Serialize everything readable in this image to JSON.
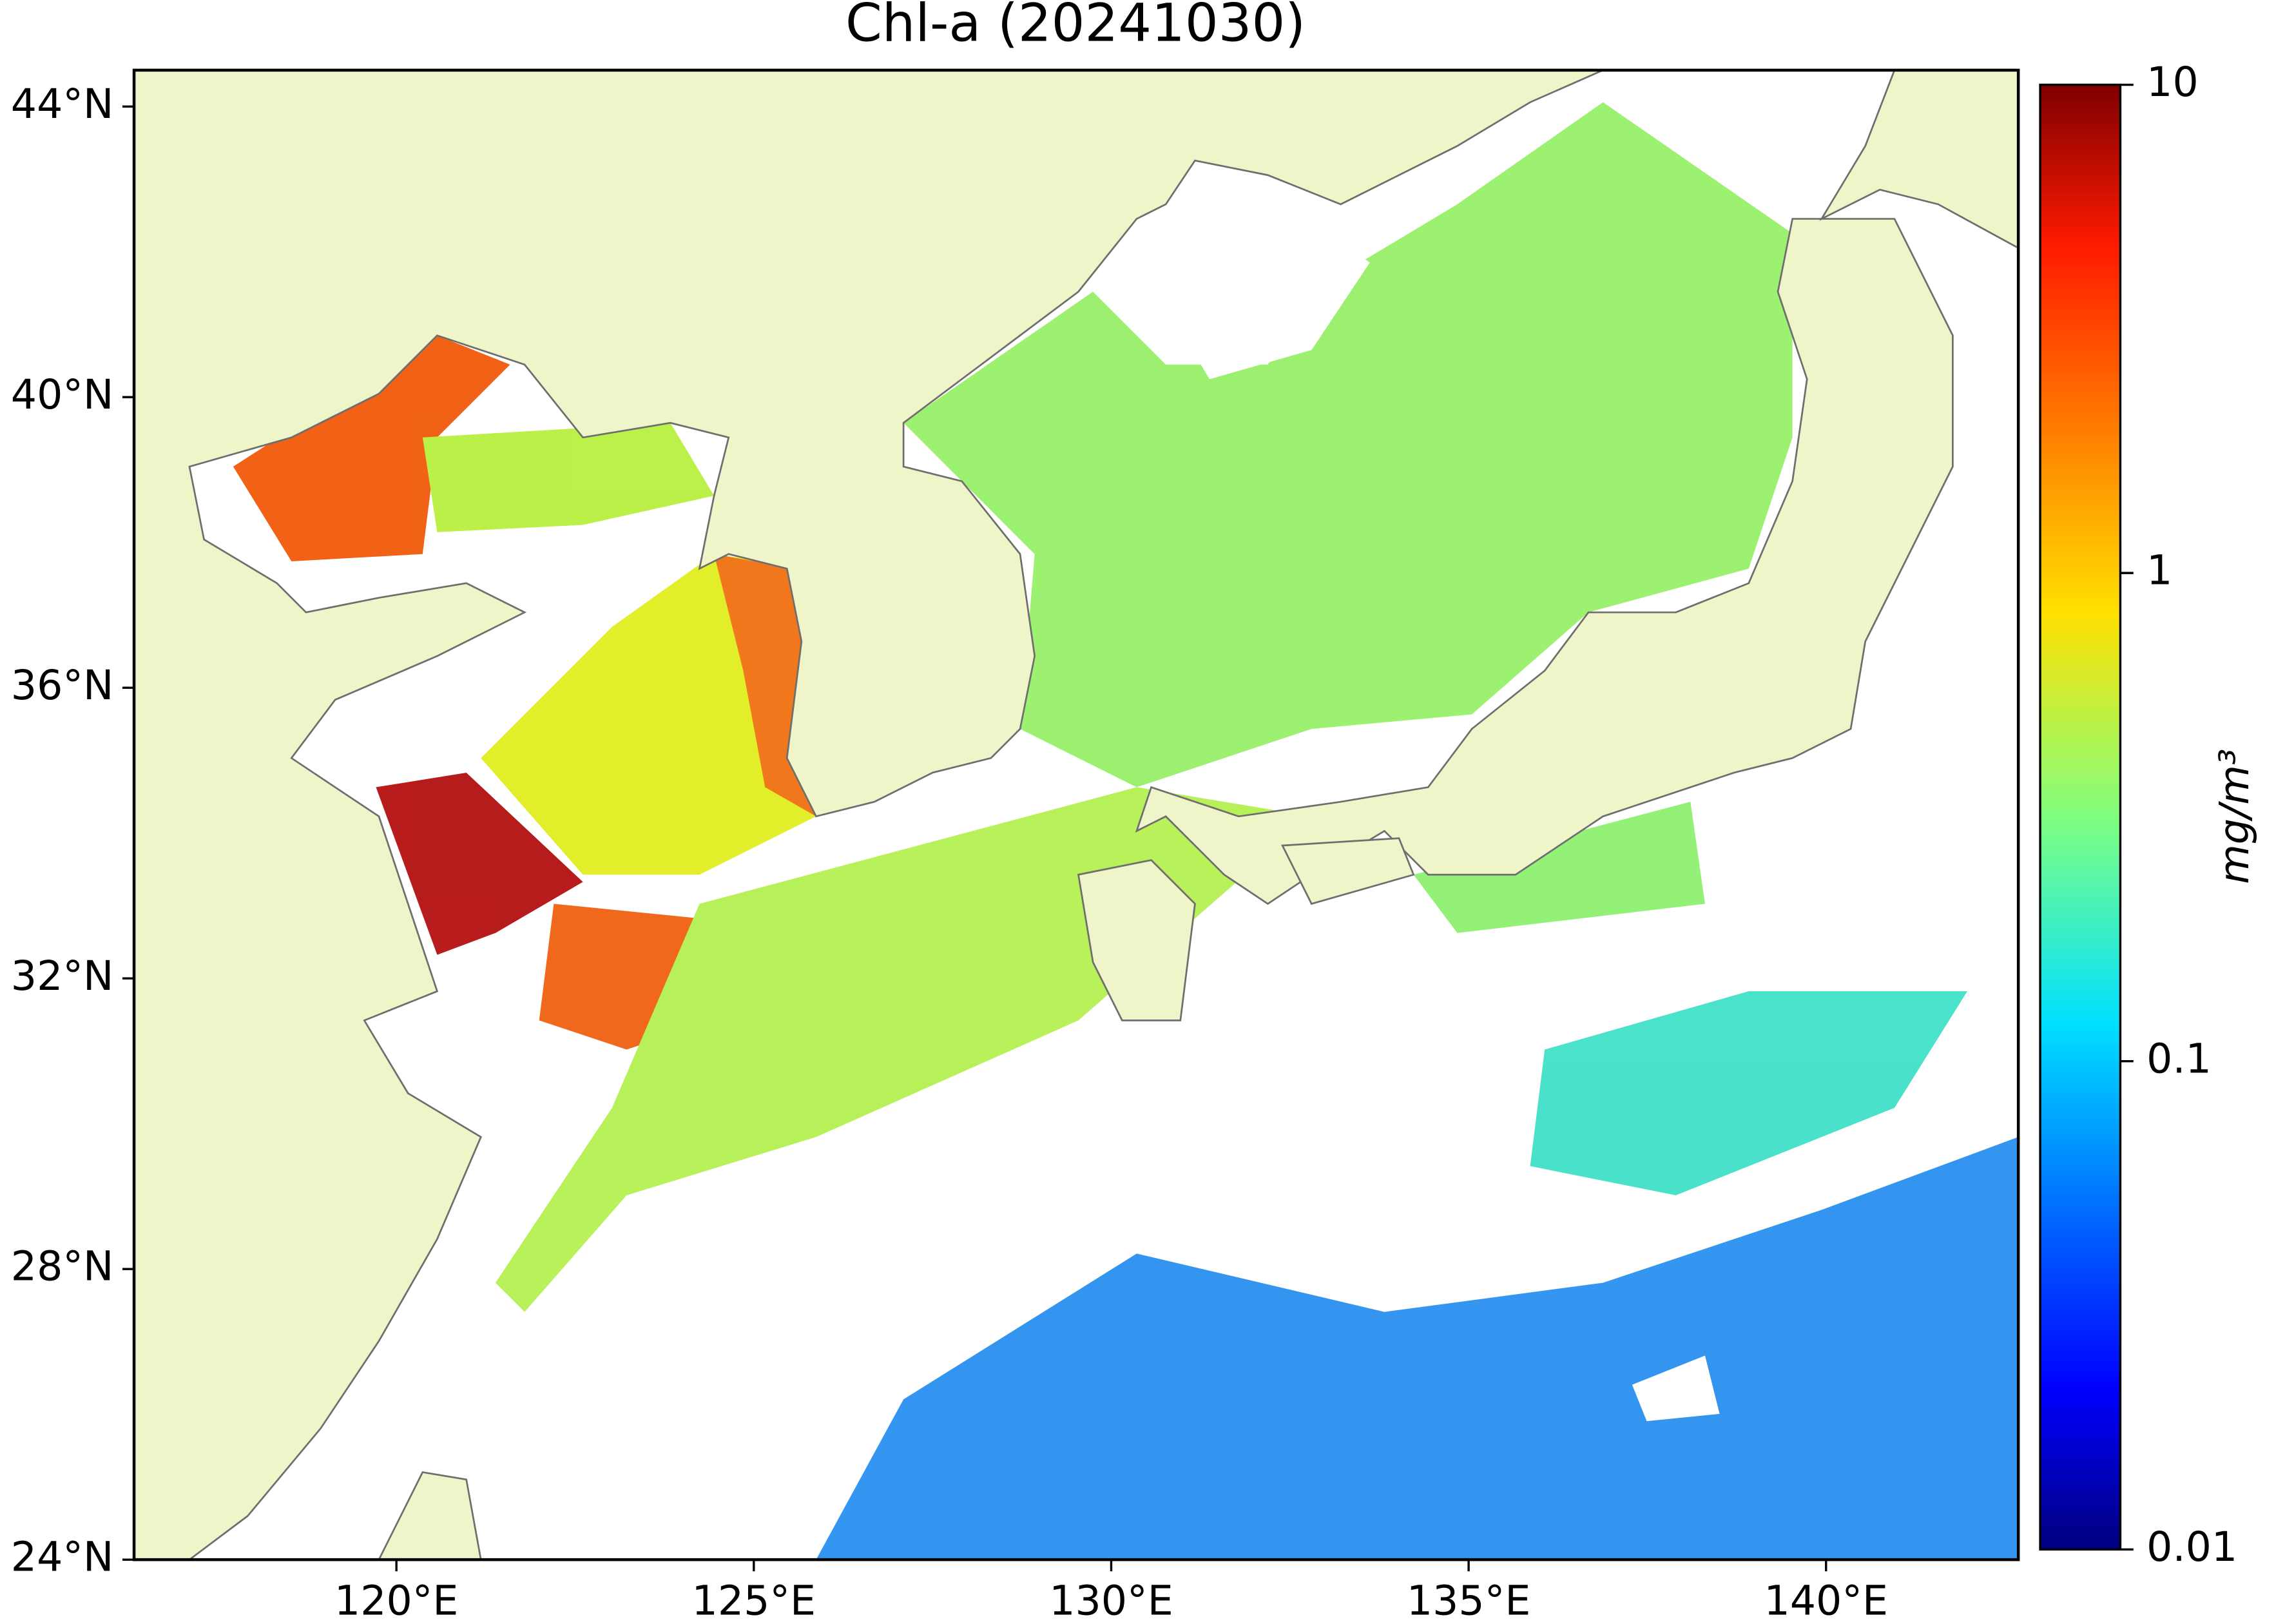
{
  "chart_data": {
    "type": "map",
    "title": "Chl-a (20241030)",
    "xlim": [
      116.33,
      142.69
    ],
    "ylim": [
      24,
      44.5
    ],
    "xticks": [
      {
        "value": 120,
        "label": "120°E"
      },
      {
        "value": 125,
        "label": "125°E"
      },
      {
        "value": 130,
        "label": "130°E"
      },
      {
        "value": 135,
        "label": "135°E"
      },
      {
        "value": 140,
        "label": "140°E"
      }
    ],
    "yticks": [
      {
        "value": 24,
        "label": "24°N"
      },
      {
        "value": 28,
        "label": "28°N"
      },
      {
        "value": 32,
        "label": "32°N"
      },
      {
        "value": 36,
        "label": "36°N"
      },
      {
        "value": 40,
        "label": "40°N"
      },
      {
        "value": 44,
        "label": "44°N"
      }
    ],
    "colorbar": {
      "label": "mg/m³",
      "scale": "log",
      "lim": [
        0.01,
        10
      ],
      "ticks": [
        0.01,
        0.1,
        1,
        10
      ],
      "colormap": "jet"
    }
  }
}
